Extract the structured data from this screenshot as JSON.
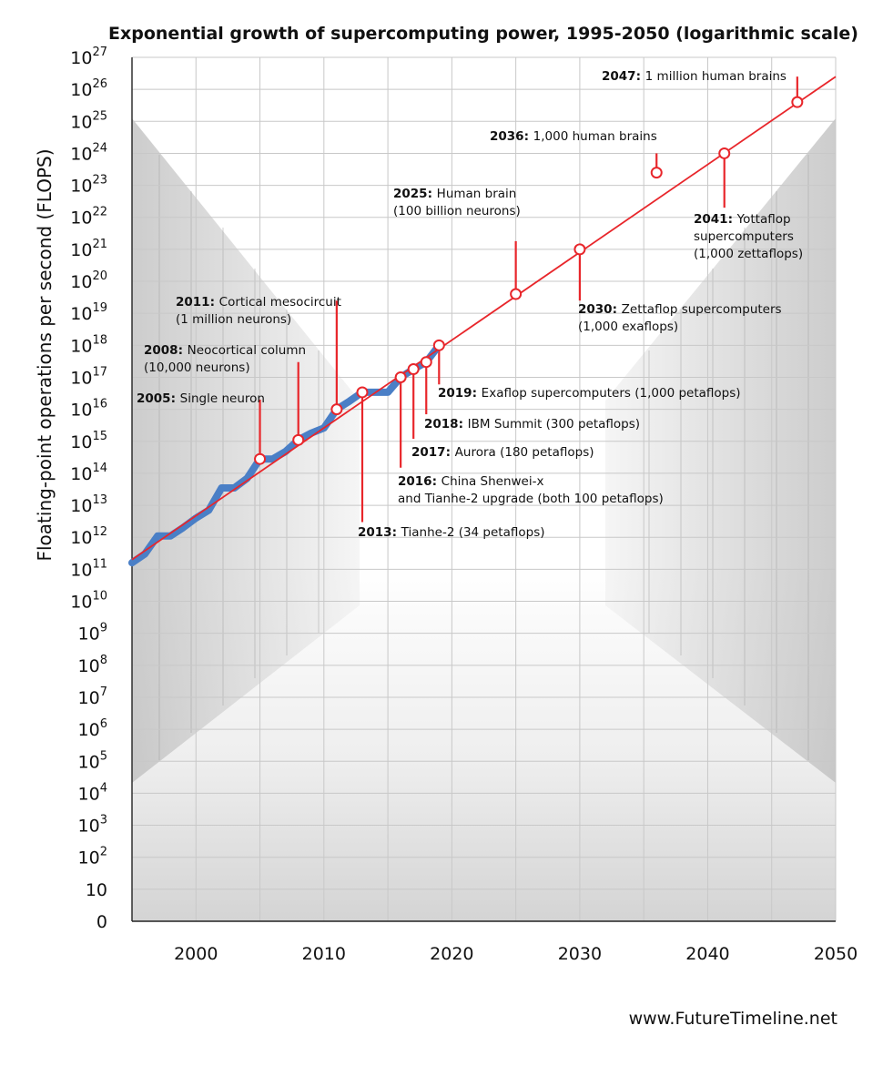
{
  "source": "www.FutureTimeline.net",
  "colors": {
    "trend_line": "#e8262b",
    "history_line": "#4a7fc6",
    "marker_fill": "#ffffff",
    "grid": "#c8c8c8",
    "text": "#111111"
  },
  "chart_data": {
    "type": "line",
    "title": "Exponential growth of supercomputing power, 1995-2050 (logarithmic scale)",
    "xlabel": "",
    "ylabel": "Floating-point operations per second (FLOPS)",
    "x_scale": "linear",
    "y_scale": "log",
    "xlim": [
      1995,
      2050
    ],
    "ylim": [
      0,
      27
    ],
    "grid": true,
    "x_ticks": [
      2000,
      2010,
      2020,
      2030,
      2040,
      2050
    ],
    "y_ticks": [
      {
        "base": "0",
        "exp": ""
      },
      {
        "base": "10",
        "exp": ""
      },
      {
        "base": "10",
        "exp": "2"
      },
      {
        "base": "10",
        "exp": "3"
      },
      {
        "base": "10",
        "exp": "4"
      },
      {
        "base": "10",
        "exp": "5"
      },
      {
        "base": "10",
        "exp": "6"
      },
      {
        "base": "10",
        "exp": "7"
      },
      {
        "base": "10",
        "exp": "8"
      },
      {
        "base": "10",
        "exp": "9"
      },
      {
        "base": "10",
        "exp": "10"
      },
      {
        "base": "10",
        "exp": "11"
      },
      {
        "base": "10",
        "exp": "12"
      },
      {
        "base": "10",
        "exp": "13"
      },
      {
        "base": "10",
        "exp": "14"
      },
      {
        "base": "10",
        "exp": "15"
      },
      {
        "base": "10",
        "exp": "16"
      },
      {
        "base": "10",
        "exp": "17"
      },
      {
        "base": "10",
        "exp": "18"
      },
      {
        "base": "10",
        "exp": "19"
      },
      {
        "base": "10",
        "exp": "20"
      },
      {
        "base": "10",
        "exp": "21"
      },
      {
        "base": "10",
        "exp": "22"
      },
      {
        "base": "10",
        "exp": "23"
      },
      {
        "base": "10",
        "exp": "24"
      },
      {
        "base": "10",
        "exp": "25"
      },
      {
        "base": "10",
        "exp": "26"
      },
      {
        "base": "10",
        "exp": "27"
      }
    ],
    "series": [
      {
        "role": "history",
        "x": [
          1995,
          1996,
          1997,
          1998,
          1999,
          2000,
          2001,
          2002,
          2003,
          2004,
          2005,
          2006,
          2007,
          2008,
          2009,
          2010,
          2011,
          2012,
          2013,
          2014,
          2015,
          2016,
          2017,
          2018,
          2019
        ],
        "y": [
          160000000000.0,
          300000000000.0,
          1100000000000.0,
          1100000000000.0,
          2000000000000.0,
          4000000000000.0,
          7000000000000.0,
          35000000000000.0,
          35000000000000.0,
          70000000000000.0,
          280000000000000.0,
          280000000000000.0,
          480000000000000.0,
          1100000000000000.0,
          1800000000000000.0,
          2600000000000000.0,
          1e+16,
          1.8e+16,
          3.4e+16,
          3.4e+16,
          3.4e+16,
          1e+17,
          1.8e+17,
          3e+17,
          1e+18
        ]
      },
      {
        "role": "trend",
        "x": [
          1995,
          2050
        ],
        "y": [
          200000000000.0,
          2.5e+26
        ]
      }
    ],
    "milestones": [
      {
        "x": 2005,
        "y": 280000000000000.0,
        "year": "2005:",
        "label": [
          "Single neuron"
        ],
        "leader_end_y": 2e+16
      },
      {
        "x": 2008,
        "y": 1100000000000000.0,
        "year": "2008:",
        "label": [
          "Neocortical column",
          "(10,000 neurons)"
        ],
        "leader_end_y": 3e+17
      },
      {
        "x": 2011,
        "y": 1e+16,
        "year": "2011:",
        "label": [
          "Cortical mesocircuit",
          "(1 million neurons)"
        ],
        "leader_end_y": 2.5e+19
      },
      {
        "x": 2013,
        "y": 3.4e+16,
        "year": "2013:",
        "label": [
          "Tianhe-2 (34 petaflops)"
        ],
        "leader_end_y": 3000000000000.0
      },
      {
        "x": 2016,
        "y": 1e+17,
        "year": "2016:",
        "label": [
          "China Shenwei-x",
          "and Tianhe-2 upgrade (both 100 petaflops)"
        ],
        "leader_end_y": 150000000000000.0
      },
      {
        "x": 2017,
        "y": 1.8e+17,
        "year": "2017:",
        "label": [
          "Aurora (180 petaflops)"
        ],
        "leader_end_y": 1200000000000000.0
      },
      {
        "x": 2018,
        "y": 3e+17,
        "year": "2018:",
        "label": [
          "IBM Summit (300 petaflops)"
        ],
        "leader_end_y": 7000000000000000.0
      },
      {
        "x": 2019,
        "y": 1e+18,
        "year": "2019:",
        "label": [
          "Exaflop supercomputers (1,000 petaflops)"
        ],
        "leader_end_y": 6e+16
      },
      {
        "x": 2025,
        "y": 4e+19,
        "year": "2025:",
        "label": [
          "Human brain",
          "(100 billion neurons)"
        ],
        "leader_end_y": 1.8e+21
      },
      {
        "x": 2030,
        "y": 1e+21,
        "year": "2030:",
        "label": [
          "Zettaflop supercomputers",
          "(1,000 exaflops)"
        ],
        "leader_end_y": 2.5e+19
      },
      {
        "x": 2036,
        "y": 2.5e+23,
        "year": "2036:",
        "label": [
          "1,000 human brains"
        ],
        "leader_end_y": 1e+24
      },
      {
        "x": 2041.3,
        "y": 1e+24,
        "year": "2041:",
        "label": [
          "Yottaflop",
          "supercomputers",
          "(1,000 zettaflops)"
        ],
        "leader_end_y": 2e+22
      },
      {
        "x": 2047,
        "y": 4e+25,
        "year": "2047:",
        "label": [
          "1 million human brains"
        ],
        "leader_end_y": 2.5e+26
      }
    ]
  }
}
